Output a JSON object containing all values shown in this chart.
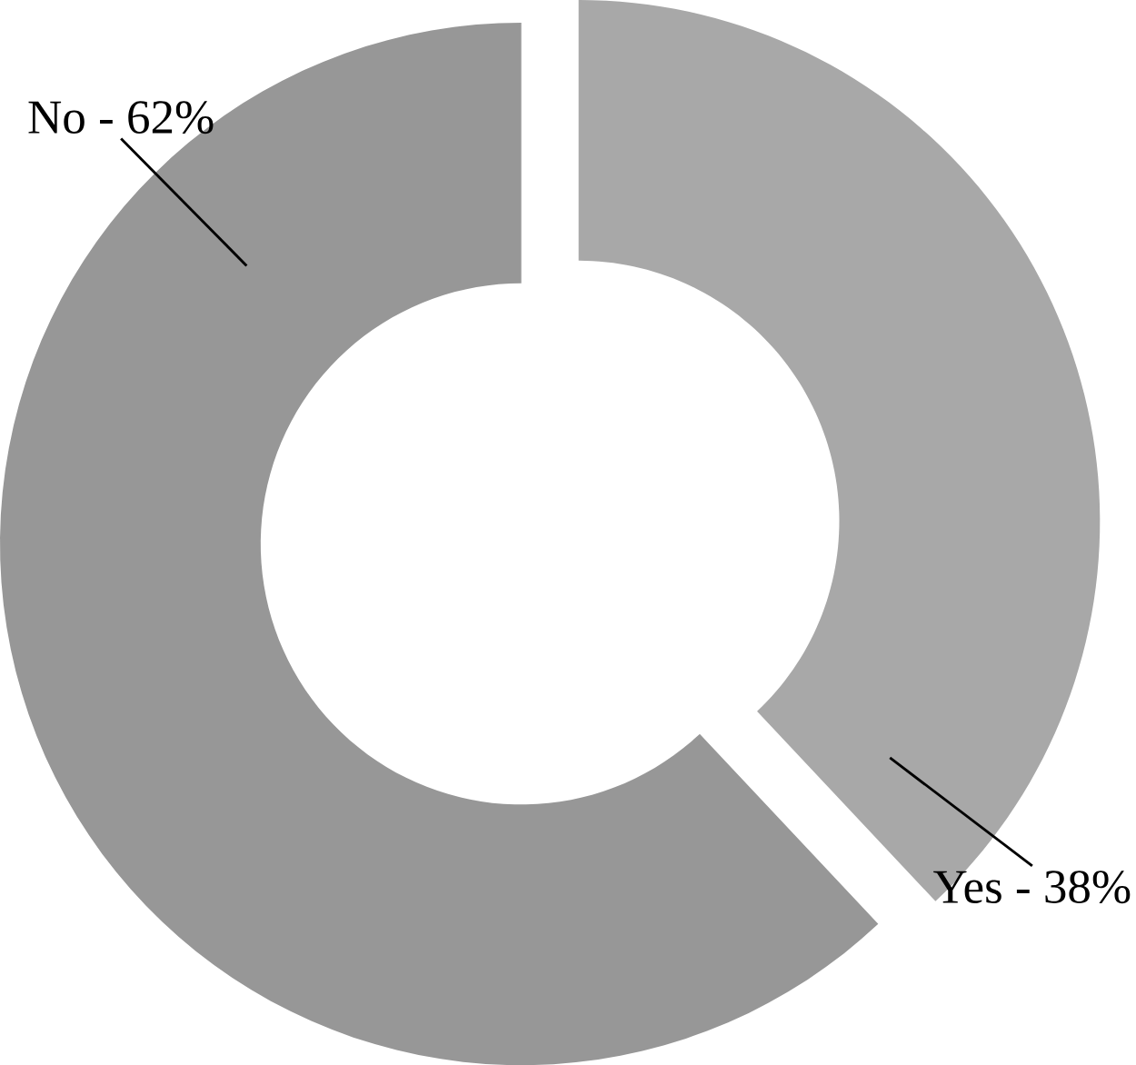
{
  "chart_data": {
    "type": "donut",
    "categories": [
      "Yes - 38%",
      "No - 62%"
    ],
    "values": [
      38,
      62
    ],
    "colors": [
      "#a8a8a8",
      "#979797"
    ]
  }
}
